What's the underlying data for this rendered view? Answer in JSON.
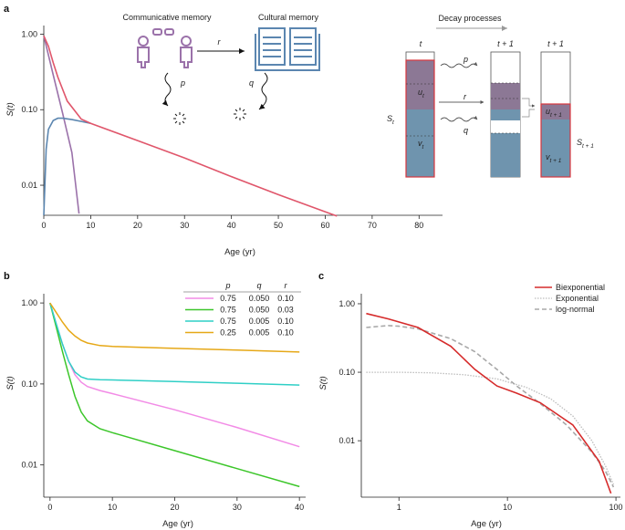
{
  "panels": {
    "a": {
      "letter": "a",
      "ylabel": "S(t)",
      "xlabel": "Age (yr)",
      "x_ticks": [
        "0",
        "10",
        "20",
        "30",
        "40",
        "50",
        "60",
        "70",
        "80"
      ],
      "y_ticks": [
        "1.00",
        "0.10",
        "0.01"
      ],
      "diagram": {
        "communicative_label": "Communicative memory",
        "cultural_label": "Cultural memory",
        "r": "r",
        "p": "p",
        "q": "q",
        "decay_label": "Decay processes",
        "col_t": "t",
        "col_t1": "t + 1",
        "col_t1b": "t + 1",
        "S_t": "S",
        "S_t_sub": "t",
        "S_t1": "S",
        "S_t1_sub": "t + 1",
        "u_t": "u",
        "u_t_sub": "t",
        "v_t": "v",
        "v_t_sub": "t",
        "u_t1": "u",
        "u_t1_sub": "t + 1",
        "v_t1": "v",
        "v_t1_sub": "t + 1",
        "arrow_p": "p",
        "arrow_r": "r",
        "arrow_q": "q"
      }
    },
    "b": {
      "letter": "b",
      "ylabel": "S(t)",
      "xlabel": "Age (yr)",
      "x_ticks": [
        "0",
        "10",
        "20",
        "30",
        "40"
      ],
      "y_ticks": [
        "1.00",
        "0.10",
        "0.01"
      ],
      "legend_headers": [
        "p",
        "q",
        "r"
      ]
    },
    "c": {
      "letter": "c",
      "ylabel": "S(t)",
      "xlabel": "Age (yr)",
      "x_ticks": [
        "1",
        "10",
        "100"
      ],
      "y_ticks": [
        "1.00",
        "0.10",
        "0.01"
      ]
    }
  },
  "colors": {
    "communicative": "#9b72aa",
    "cultural": "#5b86b0",
    "total_a": "#e0566b",
    "pink": "#f28be6",
    "green": "#3cc62a",
    "cyan": "#2fcfc6",
    "orange": "#e6a817",
    "biexp": "#d62b2b",
    "exp": "#bdbdbd",
    "lognorm": "#a8a8a8"
  },
  "chart_data": [
    {
      "panel": "a",
      "type": "line",
      "xlabel": "Age (yr)",
      "ylabel": "S(t)",
      "xlim": [
        0,
        85
      ],
      "ylim": [
        0.004,
        1.3
      ],
      "y_scale": "log",
      "series": [
        {
          "x": [
            0,
            2,
            4,
            6,
            7.5
          ],
          "values": [
            0.95,
            0.29,
            0.09,
            0.027,
            0.0042
          ]
        },
        {
          "x": [
            0,
            0.5,
            1,
            2,
            3,
            4,
            6,
            8,
            10
          ],
          "values": [
            0.004,
            0.03,
            0.055,
            0.072,
            0.077,
            0.077,
            0.074,
            0.07,
            0.066
          ]
        },
        {
          "x": [
            0,
            1,
            2,
            3,
            5,
            8,
            10,
            20,
            30,
            40,
            50,
            62.5
          ],
          "values": [
            0.95,
            0.69,
            0.42,
            0.27,
            0.13,
            0.075,
            0.066,
            0.039,
            0.023,
            0.013,
            0.0075,
            0.0039
          ]
        }
      ]
    },
    {
      "panel": "b",
      "type": "line",
      "xlabel": "Age (yr)",
      "ylabel": "S(t)",
      "xlim": [
        -1,
        41
      ],
      "ylim": [
        0.004,
        1.3
      ],
      "y_scale": "log",
      "legend": {
        "columns": [
          "p",
          "q",
          "r"
        ]
      },
      "series": [
        {
          "p": "0.75",
          "q": "0.050",
          "r": "0.10",
          "x": [
            0,
            1,
            2,
            3,
            4,
            5,
            6,
            8,
            10,
            20,
            30,
            40
          ],
          "values": [
            1.0,
            0.55,
            0.31,
            0.19,
            0.13,
            0.105,
            0.093,
            0.083,
            0.076,
            0.048,
            0.029,
            0.0168
          ]
        },
        {
          "p": "0.75",
          "q": "0.050",
          "r": "0.03",
          "x": [
            0,
            1,
            2,
            3,
            4,
            5,
            6,
            8,
            10,
            20,
            30,
            40
          ],
          "values": [
            1.0,
            0.5,
            0.25,
            0.13,
            0.07,
            0.045,
            0.035,
            0.028,
            0.025,
            0.015,
            0.009,
            0.0054
          ]
        },
        {
          "p": "0.75",
          "q": "0.005",
          "r": "0.10",
          "x": [
            0,
            1,
            2,
            3,
            4,
            5,
            6,
            8,
            10,
            20,
            30,
            40
          ],
          "values": [
            1.0,
            0.55,
            0.31,
            0.19,
            0.14,
            0.122,
            0.115,
            0.113,
            0.112,
            0.107,
            0.102,
            0.097
          ]
        },
        {
          "p": "0.25",
          "q": "0.005",
          "r": "0.10",
          "x": [
            0,
            1,
            2,
            3,
            4,
            5,
            6,
            8,
            10,
            20,
            30,
            40
          ],
          "values": [
            1.0,
            0.76,
            0.58,
            0.46,
            0.39,
            0.345,
            0.32,
            0.298,
            0.29,
            0.275,
            0.262,
            0.248
          ]
        }
      ]
    },
    {
      "panel": "c",
      "type": "line",
      "xlabel": "Age (yr)",
      "ylabel": "S(t)",
      "xlim": [
        0.45,
        110
      ],
      "ylim": [
        0.0015,
        1.4
      ],
      "x_scale": "log",
      "y_scale": "log",
      "series": [
        {
          "name": "Biexponential",
          "x": [
            0.5,
            0.8,
            1.5,
            3,
            5,
            8,
            12,
            20,
            40,
            70,
            90
          ],
          "values": [
            0.72,
            0.6,
            0.45,
            0.24,
            0.11,
            0.063,
            0.05,
            0.036,
            0.017,
            0.005,
            0.0017
          ]
        },
        {
          "name": "Exponential",
          "x": [
            0.5,
            1,
            2,
            4,
            8,
            15,
            25,
            40,
            60,
            80,
            95
          ],
          "values": [
            0.1,
            0.1,
            0.098,
            0.092,
            0.08,
            0.06,
            0.041,
            0.023,
            0.01,
            0.0043,
            0.0023
          ]
        },
        {
          "name": "log-normal",
          "x": [
            0.5,
            0.8,
            1,
            1.5,
            3,
            5,
            8,
            12,
            20,
            35,
            60,
            80,
            95
          ],
          "values": [
            0.45,
            0.48,
            0.47,
            0.43,
            0.31,
            0.2,
            0.11,
            0.064,
            0.035,
            0.017,
            0.0068,
            0.0036,
            0.0021
          ]
        }
      ]
    }
  ]
}
